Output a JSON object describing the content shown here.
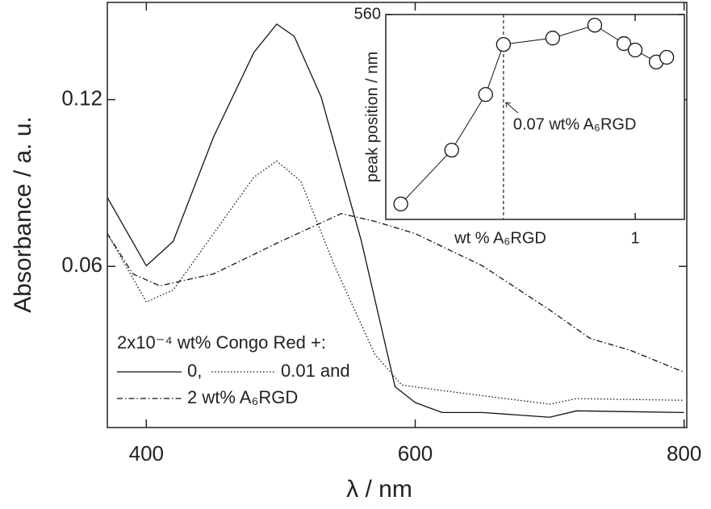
{
  "chart_data": [
    {
      "type": "line",
      "x_label": "λ / nm",
      "y_label": "Absorbance / a. u.",
      "xlim": [
        371,
        802
      ],
      "ylim": [
        0.002,
        0.155
      ],
      "xticks": [
        400,
        600,
        800
      ],
      "yticks": [
        0.06,
        0.12
      ],
      "legend_title": "2x10⁻⁴ wt% Congo Red +:",
      "legend": "lower left",
      "series": [
        {
          "name": "0,",
          "color": "#111111",
          "linestyle": "solid",
          "x": [
            371,
            400,
            420,
            450,
            480,
            497,
            510,
            530,
            560,
            585,
            600,
            620,
            650,
            700,
            720,
            800
          ],
          "values": [
            0.0848,
            0.0602,
            0.069,
            0.1066,
            0.137,
            0.1472,
            0.1428,
            0.121,
            0.069,
            0.0167,
            0.011,
            0.0074,
            0.0074,
            0.0057,
            0.008,
            0.0074
          ]
        },
        {
          "name": "0.01 and",
          "color": "#111111",
          "linestyle": "dotted",
          "x": [
            371,
            400,
            420,
            450,
            480,
            497,
            515,
            540,
            570,
            590,
            620,
            700,
            720,
            800
          ],
          "values": [
            0.0718,
            0.0472,
            0.0515,
            0.0718,
            0.0921,
            0.0979,
            0.0906,
            0.0602,
            0.0283,
            0.0173,
            0.0153,
            0.0104,
            0.0124,
            0.0118
          ]
        },
        {
          "name": "2 wt% A₆RGD",
          "color": "#111111",
          "linestyle": "dashdot",
          "x": [
            371,
            390,
            410,
            450,
            500,
            545,
            570,
            600,
            650,
            700,
            730,
            760,
            800
          ],
          "values": [
            0.0718,
            0.0573,
            0.053,
            0.0573,
            0.069,
            0.079,
            0.0762,
            0.0718,
            0.0602,
            0.0443,
            0.0341,
            0.0298,
            0.0219
          ]
        }
      ]
    },
    {
      "type": "scatter",
      "connected": true,
      "marker": "open-circle",
      "xscale": "log",
      "x_label": "wt % A₆RGD",
      "y_label": "peak position / nm",
      "xlim": [
        0.0065,
        2.7
      ],
      "ylim": [
        512.1,
        560
      ],
      "xticks": [
        1
      ],
      "yticks": [
        560
      ],
      "vline": 0.07,
      "annotation": "0.07 wt% A₆RGD",
      "color": "#111111",
      "x": [
        0.0088,
        0.0246,
        0.0488,
        0.07,
        0.189,
        0.442,
        0.796,
        1,
        1.53,
        1.89
      ],
      "values": [
        515.7,
        528.3,
        541.3,
        553.0,
        554.5,
        557.5,
        553.2,
        551.7,
        548.9,
        550.0
      ]
    }
  ]
}
